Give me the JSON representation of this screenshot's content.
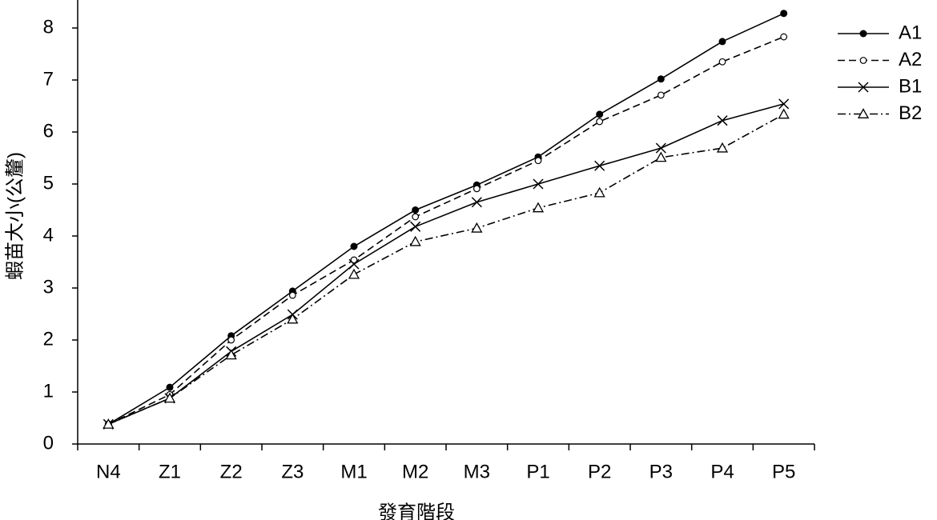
{
  "chart_data": {
    "type": "line",
    "y_label": "蝦苗大小(公釐)",
    "x_label": "發育階段",
    "categories": [
      "N4",
      "Z1",
      "Z2",
      "Z3",
      "M1",
      "M2",
      "M3",
      "P1",
      "P2",
      "P3",
      "P4",
      "P5"
    ],
    "ylim": [
      0,
      8.5
    ],
    "yticks": [
      0,
      1,
      2,
      3,
      4,
      5,
      6,
      7,
      8
    ],
    "legend": "upper right",
    "series": [
      {
        "name": "A1",
        "color": "#000000",
        "linestyle": "solid",
        "marker": "filled-circle",
        "values": [
          0.38,
          1.09,
          2.08,
          2.94,
          3.8,
          4.5,
          4.98,
          5.52,
          6.34,
          7.02,
          7.74,
          8.28
        ]
      },
      {
        "name": "A2",
        "color": "#000000",
        "linestyle": "dashed",
        "marker": "open-circle",
        "values": [
          0.38,
          0.95,
          2.0,
          2.86,
          3.54,
          4.37,
          4.91,
          5.45,
          6.2,
          6.71,
          7.35,
          7.83
        ]
      },
      {
        "name": "B1",
        "color": "#000000",
        "linestyle": "solid",
        "marker": "cross",
        "values": [
          0.38,
          0.88,
          1.78,
          2.49,
          3.46,
          4.18,
          4.65,
          5.0,
          5.35,
          5.69,
          6.22,
          6.54
        ]
      },
      {
        "name": "B2",
        "color": "#000000",
        "linestyle": "dashdot",
        "marker": "open-triangle",
        "values": [
          0.38,
          0.88,
          1.71,
          2.4,
          3.26,
          3.89,
          4.15,
          4.54,
          4.83,
          5.51,
          5.69,
          6.34
        ]
      }
    ]
  }
}
